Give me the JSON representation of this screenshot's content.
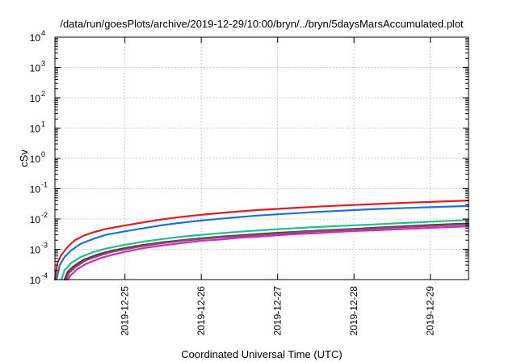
{
  "chart_data": {
    "type": "line",
    "title": "/data/run/goesPlots/archive/2019-12-29/10:00/bryn/../bryn/5daysMarsAccumulated.plot",
    "xlabel": "Coordinated Universal Time (UTC)",
    "ylabel": "cSv",
    "x_type": "date",
    "xlim": [
      "2019-12-24T02:00",
      "2019-12-29T12:00"
    ],
    "ylim": [
      0.0001,
      10000
    ],
    "yscale": "log",
    "grid": true,
    "legend": "none",
    "x_ticks": [
      "2019-12-25",
      "2019-12-26",
      "2019-12-27",
      "2019-12-28",
      "2019-12-29"
    ],
    "y_ticks": [
      {
        "value": 0.0001,
        "base": "10",
        "exp": "-4"
      },
      {
        "value": 0.001,
        "base": "10",
        "exp": "-3"
      },
      {
        "value": 0.01,
        "base": "10",
        "exp": "-2"
      },
      {
        "value": 0.1,
        "base": "10",
        "exp": "-1"
      },
      {
        "value": 1,
        "base": "10",
        "exp": "0"
      },
      {
        "value": 10,
        "base": "10",
        "exp": "1"
      },
      {
        "value": 100,
        "base": "10",
        "exp": "2"
      },
      {
        "value": 1000,
        "base": "10",
        "exp": "3"
      },
      {
        "value": 10000,
        "base": "10",
        "exp": "4"
      }
    ],
    "series": [
      {
        "color": "#e41a1c",
        "points": [
          [
            "2019-12-24T02:00",
            0.0001
          ],
          [
            "2019-12-24T02:45",
            0.00035
          ],
          [
            "2019-12-24T04:00",
            0.00065
          ],
          [
            "2019-12-24T06:00",
            0.0012
          ],
          [
            "2019-12-24T08:00",
            0.0019
          ],
          [
            "2019-12-24T11:00",
            0.0028
          ],
          [
            "2019-12-24T14:00",
            0.0036
          ],
          [
            "2019-12-24T18:00",
            0.0047
          ],
          [
            "2019-12-25T00:00",
            0.0061
          ],
          [
            "2019-12-25T06:00",
            0.0078
          ],
          [
            "2019-12-25T12:00",
            0.0098
          ],
          [
            "2019-12-25T18:00",
            0.0118
          ],
          [
            "2019-12-26T00:00",
            0.0138
          ],
          [
            "2019-12-26T06:00",
            0.0158
          ],
          [
            "2019-12-26T12:00",
            0.0178
          ],
          [
            "2019-12-26T18:00",
            0.0198
          ],
          [
            "2019-12-27T00:00",
            0.0215
          ],
          [
            "2019-12-27T06:00",
            0.0235
          ],
          [
            "2019-12-27T12:00",
            0.0255
          ],
          [
            "2019-12-27T18:00",
            0.0272
          ],
          [
            "2019-12-28T00:00",
            0.029
          ],
          [
            "2019-12-28T06:00",
            0.031
          ],
          [
            "2019-12-28T12:00",
            0.033
          ],
          [
            "2019-12-28T18:00",
            0.0348
          ],
          [
            "2019-12-29T00:00",
            0.0365
          ],
          [
            "2019-12-29T06:00",
            0.0385
          ],
          [
            "2019-12-29T12:00",
            0.0405
          ]
        ]
      },
      {
        "color": "#1f6fe0",
        "points": [
          [
            "2019-12-24T02:30",
            0.0001
          ],
          [
            "2019-12-24T03:30",
            0.0003
          ],
          [
            "2019-12-24T05:00",
            0.00055
          ],
          [
            "2019-12-24T07:00",
            0.0009
          ],
          [
            "2019-12-24T10:00",
            0.0015
          ],
          [
            "2019-12-24T14:00",
            0.0022
          ],
          [
            "2019-12-24T18:00",
            0.003
          ],
          [
            "2019-12-25T00:00",
            0.0039
          ],
          [
            "2019-12-25T06:00",
            0.005
          ],
          [
            "2019-12-25T12:00",
            0.0063
          ],
          [
            "2019-12-25T18:00",
            0.0076
          ],
          [
            "2019-12-26T00:00",
            0.0089
          ],
          [
            "2019-12-26T06:00",
            0.0102
          ],
          [
            "2019-12-26T12:00",
            0.0116
          ],
          [
            "2019-12-26T18:00",
            0.013
          ],
          [
            "2019-12-27T00:00",
            0.0143
          ],
          [
            "2019-12-27T06:00",
            0.0156
          ],
          [
            "2019-12-27T12:00",
            0.017
          ],
          [
            "2019-12-27T18:00",
            0.0183
          ],
          [
            "2019-12-28T00:00",
            0.0196
          ],
          [
            "2019-12-28T06:00",
            0.021
          ],
          [
            "2019-12-28T12:00",
            0.0222
          ],
          [
            "2019-12-28T18:00",
            0.0234
          ],
          [
            "2019-12-29T00:00",
            0.0245
          ],
          [
            "2019-12-29T06:00",
            0.0257
          ],
          [
            "2019-12-29T12:00",
            0.0268
          ]
        ]
      },
      {
        "color": "#1fbf8f",
        "points": [
          [
            "2019-12-24T04:00",
            0.0001
          ],
          [
            "2019-12-24T05:00",
            0.0002
          ],
          [
            "2019-12-24T07:00",
            0.00035
          ],
          [
            "2019-12-24T10:00",
            0.00055
          ],
          [
            "2019-12-24T14:00",
            0.0008
          ],
          [
            "2019-12-24T18:00",
            0.00105
          ],
          [
            "2019-12-25T00:00",
            0.0014
          ],
          [
            "2019-12-25T06:00",
            0.0018
          ],
          [
            "2019-12-25T12:00",
            0.0022
          ],
          [
            "2019-12-25T18:00",
            0.0026
          ],
          [
            "2019-12-26T00:00",
            0.003
          ],
          [
            "2019-12-26T06:00",
            0.0034
          ],
          [
            "2019-12-26T12:00",
            0.0038
          ],
          [
            "2019-12-26T18:00",
            0.0042
          ],
          [
            "2019-12-27T00:00",
            0.0046
          ],
          [
            "2019-12-27T06:00",
            0.005
          ],
          [
            "2019-12-27T12:00",
            0.0054
          ],
          [
            "2019-12-27T18:00",
            0.0058
          ],
          [
            "2019-12-28T00:00",
            0.0062
          ],
          [
            "2019-12-28T06:00",
            0.0066
          ],
          [
            "2019-12-28T12:00",
            0.0071
          ],
          [
            "2019-12-28T18:00",
            0.0076
          ],
          [
            "2019-12-29T00:00",
            0.0081
          ],
          [
            "2019-12-29T06:00",
            0.0087
          ],
          [
            "2019-12-29T12:00",
            0.0093
          ]
        ]
      },
      {
        "color": "#8b1e3f",
        "points": [
          [
            "2019-12-24T05:00",
            0.0001
          ],
          [
            "2019-12-24T06:00",
            0.00018
          ],
          [
            "2019-12-24T08:00",
            0.00028
          ],
          [
            "2019-12-24T11:00",
            0.00045
          ],
          [
            "2019-12-24T15:00",
            0.00065
          ],
          [
            "2019-12-24T19:00",
            0.00085
          ],
          [
            "2019-12-25T00:00",
            0.0011
          ],
          [
            "2019-12-25T06:00",
            0.0014
          ],
          [
            "2019-12-25T12:00",
            0.0017
          ],
          [
            "2019-12-25T18:00",
            0.002
          ],
          [
            "2019-12-26T00:00",
            0.0023
          ],
          [
            "2019-12-26T06:00",
            0.0026
          ],
          [
            "2019-12-26T12:00",
            0.0029
          ],
          [
            "2019-12-26T18:00",
            0.0032
          ],
          [
            "2019-12-27T00:00",
            0.0035
          ],
          [
            "2019-12-27T06:00",
            0.0038
          ],
          [
            "2019-12-27T12:00",
            0.0041
          ],
          [
            "2019-12-27T18:00",
            0.0044
          ],
          [
            "2019-12-28T00:00",
            0.0047
          ],
          [
            "2019-12-28T06:00",
            0.0051
          ],
          [
            "2019-12-28T12:00",
            0.0055
          ],
          [
            "2019-12-28T18:00",
            0.0059
          ],
          [
            "2019-12-29T00:00",
            0.0063
          ],
          [
            "2019-12-29T06:00",
            0.0067
          ],
          [
            "2019-12-29T12:00",
            0.0071
          ]
        ]
      },
      {
        "color": "#606060",
        "points": [
          [
            "2019-12-24T05:30",
            0.0001
          ],
          [
            "2019-12-24T06:30",
            0.00017
          ],
          [
            "2019-12-24T08:30",
            0.00026
          ],
          [
            "2019-12-24T11:30",
            0.00042
          ],
          [
            "2019-12-24T15:30",
            0.0006
          ],
          [
            "2019-12-24T19:30",
            0.0008
          ],
          [
            "2019-12-25T00:00",
            0.001
          ],
          [
            "2019-12-25T06:00",
            0.0013
          ],
          [
            "2019-12-25T12:00",
            0.0016
          ],
          [
            "2019-12-25T18:00",
            0.0019
          ],
          [
            "2019-12-26T00:00",
            0.0022
          ],
          [
            "2019-12-26T06:00",
            0.0025
          ],
          [
            "2019-12-26T12:00",
            0.0027
          ],
          [
            "2019-12-26T18:00",
            0.003
          ],
          [
            "2019-12-27T00:00",
            0.0033
          ],
          [
            "2019-12-27T06:00",
            0.0036
          ],
          [
            "2019-12-27T12:00",
            0.0039
          ],
          [
            "2019-12-27T18:00",
            0.0042
          ],
          [
            "2019-12-28T00:00",
            0.0045
          ],
          [
            "2019-12-28T06:00",
            0.0048
          ],
          [
            "2019-12-28T12:00",
            0.0052
          ],
          [
            "2019-12-28T18:00",
            0.0055
          ],
          [
            "2019-12-29T00:00",
            0.0059
          ],
          [
            "2019-12-29T06:00",
            0.0063
          ],
          [
            "2019-12-29T12:00",
            0.0066
          ]
        ]
      },
      {
        "color": "#e020c8",
        "points": [
          [
            "2019-12-24T06:00",
            0.0001
          ],
          [
            "2019-12-24T07:00",
            0.00014
          ],
          [
            "2019-12-24T09:00",
            0.00022
          ],
          [
            "2019-12-24T12:00",
            0.00034
          ],
          [
            "2019-12-24T16:00",
            0.0005
          ],
          [
            "2019-12-24T20:00",
            0.00066
          ],
          [
            "2019-12-25T00:00",
            0.00082
          ],
          [
            "2019-12-25T06:00",
            0.0011
          ],
          [
            "2019-12-25T12:00",
            0.00135
          ],
          [
            "2019-12-25T18:00",
            0.0016
          ],
          [
            "2019-12-26T00:00",
            0.0019
          ],
          [
            "2019-12-26T06:00",
            0.0021
          ],
          [
            "2019-12-26T12:00",
            0.0024
          ],
          [
            "2019-12-26T18:00",
            0.0026
          ],
          [
            "2019-12-27T00:00",
            0.0029
          ],
          [
            "2019-12-27T06:00",
            0.0032
          ],
          [
            "2019-12-27T12:00",
            0.0034
          ],
          [
            "2019-12-27T18:00",
            0.0037
          ],
          [
            "2019-12-28T00:00",
            0.004
          ],
          [
            "2019-12-28T06:00",
            0.0042
          ],
          [
            "2019-12-28T12:00",
            0.0045
          ],
          [
            "2019-12-28T18:00",
            0.0048
          ],
          [
            "2019-12-29T00:00",
            0.0051
          ],
          [
            "2019-12-29T06:00",
            0.0054
          ],
          [
            "2019-12-29T12:00",
            0.0057
          ]
        ]
      }
    ]
  }
}
